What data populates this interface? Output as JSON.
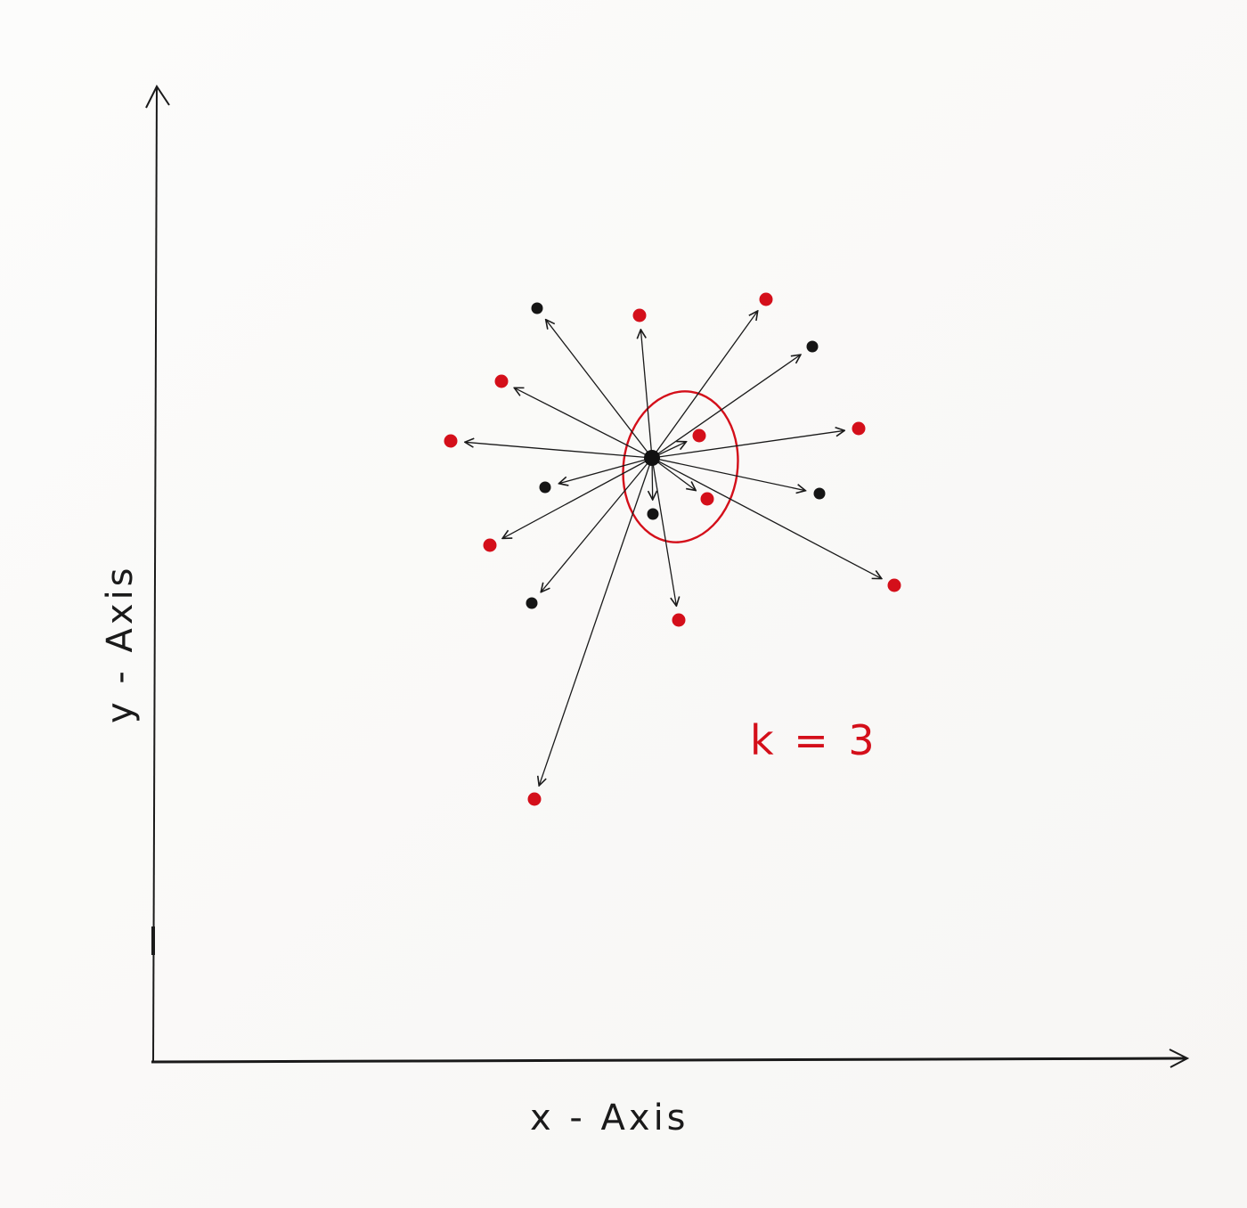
{
  "diagram": {
    "x_axis_label": "x - Axis",
    "y_axis_label": "y - Axis",
    "k_label": "k = 3",
    "k_value": 3,
    "colors": {
      "ink": "#1a1a1a",
      "class_red": "#d40f1a",
      "class_black": "#151515",
      "neighborhood_circle": "#d40f1a"
    },
    "query_point": {
      "name": "query-point",
      "color": "black"
    },
    "points": [
      {
        "id": "p1",
        "color": "black"
      },
      {
        "id": "p2",
        "color": "red"
      },
      {
        "id": "p3",
        "color": "red"
      },
      {
        "id": "p4",
        "color": "black"
      },
      {
        "id": "p5",
        "color": "red"
      },
      {
        "id": "p6",
        "color": "red"
      },
      {
        "id": "p7",
        "color": "red"
      },
      {
        "id": "p8",
        "color": "red"
      },
      {
        "id": "p9",
        "color": "black"
      },
      {
        "id": "p10",
        "color": "black"
      },
      {
        "id": "p11",
        "color": "red"
      },
      {
        "id": "p12",
        "color": "black"
      },
      {
        "id": "p13",
        "color": "red"
      },
      {
        "id": "p14",
        "color": "black"
      },
      {
        "id": "p15",
        "color": "red"
      },
      {
        "id": "p16",
        "color": "red"
      },
      {
        "id": "p17",
        "color": "red"
      }
    ],
    "nearest_neighbors": [
      "p7",
      "p10",
      "p14"
    ]
  }
}
